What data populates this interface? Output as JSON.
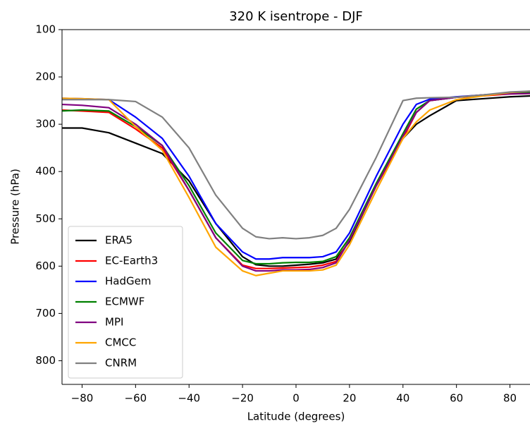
{
  "chart_data": {
    "type": "line",
    "title": "320 K isentrope - DJF",
    "x_label": "Latitude (degrees)",
    "y_label": "Pressure (hPa)",
    "x": [
      -88,
      -80,
      -70,
      -60,
      -50,
      -40,
      -30,
      -20,
      -15,
      -10,
      -5,
      0,
      5,
      10,
      15,
      20,
      30,
      40,
      45,
      50,
      60,
      70,
      80,
      88
    ],
    "series": [
      {
        "name": "ERA5",
        "color": "#000000",
        "values": [
          308,
          308,
          318,
          340,
          362,
          420,
          510,
          580,
          597,
          600,
          600,
          598,
          596,
          593,
          585,
          548,
          430,
          330,
          300,
          282,
          250,
          246,
          242,
          240
        ]
      },
      {
        "name": "EC-Earth3",
        "color": "#ff0000",
        "values": [
          270,
          272,
          275,
          310,
          350,
          440,
          540,
          598,
          605,
          605,
          604,
          603,
          602,
          598,
          590,
          545,
          430,
          330,
          275,
          250,
          243,
          240,
          236,
          235
        ]
      },
      {
        "name": "HadGem",
        "color": "#0000ff",
        "values": [
          245,
          246,
          248,
          285,
          330,
          410,
          510,
          570,
          585,
          585,
          582,
          582,
          582,
          580,
          570,
          530,
          410,
          300,
          258,
          247,
          242,
          238,
          235,
          233
        ]
      },
      {
        "name": "ECMWF",
        "color": "#008000",
        "values": [
          272,
          270,
          272,
          305,
          345,
          430,
          530,
          588,
          595,
          595,
          593,
          592,
          592,
          590,
          580,
          540,
          425,
          320,
          268,
          250,
          243,
          238,
          235,
          233
        ]
      },
      {
        "name": "MPI",
        "color": "#800080",
        "values": [
          258,
          260,
          265,
          300,
          345,
          440,
          540,
          600,
          610,
          610,
          608,
          608,
          607,
          603,
          593,
          545,
          430,
          325,
          275,
          250,
          243,
          238,
          236,
          235
        ]
      },
      {
        "name": "CMCC",
        "color": "#ffa500",
        "values": [
          245,
          246,
          248,
          305,
          355,
          455,
          560,
          610,
          620,
          615,
          610,
          610,
          610,
          608,
          598,
          555,
          440,
          330,
          295,
          270,
          248,
          240,
          233,
          230
        ]
      },
      {
        "name": "CNRM",
        "color": "#808080",
        "values": [
          248,
          248,
          248,
          252,
          285,
          350,
          450,
          520,
          538,
          542,
          540,
          542,
          540,
          535,
          520,
          480,
          370,
          250,
          245,
          244,
          243,
          238,
          232,
          230
        ]
      }
    ],
    "xlim": [
      -87.5,
      87.5
    ],
    "xticks": [
      {
        "value": -80,
        "label": "−80"
      },
      {
        "value": -60,
        "label": "−60"
      },
      {
        "value": -40,
        "label": "−40"
      },
      {
        "value": -20,
        "label": "−20"
      },
      0,
      20,
      40,
      60,
      80
    ],
    "ylim": [
      850,
      100
    ],
    "yticks": [
      100,
      200,
      300,
      400,
      500,
      600,
      700,
      800
    ],
    "legend": "lower left"
  }
}
